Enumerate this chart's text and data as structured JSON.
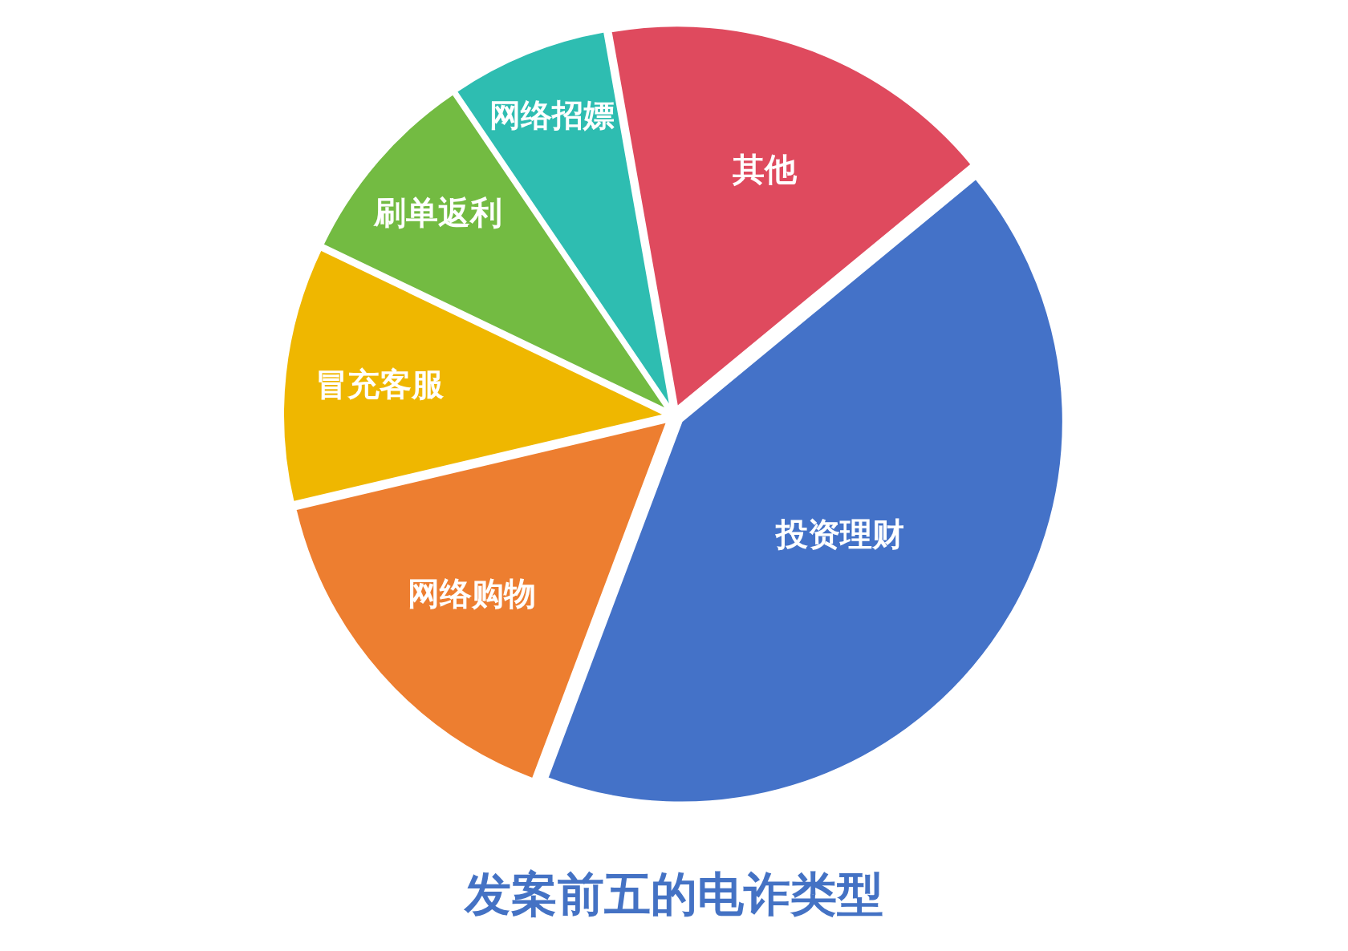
{
  "chart_data": {
    "type": "pie",
    "title": "发案前五的电诈类型",
    "categories": [
      "其他",
      "投资理财",
      "网络购物",
      "冒充客服",
      "刷单返利",
      "网络招嫖"
    ],
    "values": [
      16.8,
      41.7,
      15.6,
      10.8,
      8.4,
      6.7
    ],
    "colors": [
      "#df4a5e",
      "#4472c8",
      "#ed7e30",
      "#efb700",
      "#73bb42",
      "#2ebdb1"
    ]
  }
}
